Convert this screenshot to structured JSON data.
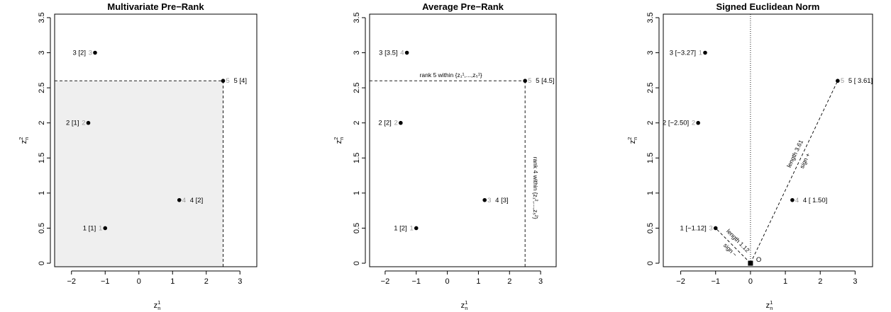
{
  "chart_data": [
    {
      "type": "scatter",
      "title": "Multivariate Pre−Rank",
      "xlabel": "z_n^1",
      "ylabel": "z_n^2",
      "xlim": [
        -2.5,
        3.5
      ],
      "ylim": [
        -0.05,
        3.55
      ],
      "xticks": [
        -2,
        -1,
        0,
        1,
        2,
        3
      ],
      "yticks": [
        0.0,
        0.5,
        1.0,
        1.5,
        2.0,
        2.5,
        3.0,
        3.5
      ],
      "grid": false,
      "points": [
        {
          "x": -1.0,
          "y": 0.5,
          "label": "1  [1]",
          "rank": "1",
          "label_side": "left"
        },
        {
          "x": -1.5,
          "y": 2.0,
          "label": "2  [1]",
          "rank": "2",
          "label_side": "left"
        },
        {
          "x": -1.3,
          "y": 3.0,
          "label": "3  [2]",
          "rank": "3",
          "label_side": "left"
        },
        {
          "x": 1.2,
          "y": 0.9,
          "label": "4  [2]",
          "rank": "4",
          "label_side": "right"
        },
        {
          "x": 2.5,
          "y": 2.6,
          "label": "5  [4]",
          "rank": "5",
          "label_side": "right"
        }
      ],
      "shaded_region": {
        "x_max": 2.5,
        "y_max": 2.6,
        "color": "#efefef"
      },
      "dashed_lines": [
        {
          "from": [
            -2.5,
            2.6
          ],
          "to": [
            2.5,
            2.6
          ]
        },
        {
          "from": [
            2.5,
            -0.05
          ],
          "to": [
            2.5,
            2.6
          ]
        }
      ]
    },
    {
      "type": "scatter",
      "title": "Average Pre−Rank",
      "xlabel": "z_n^1",
      "ylabel": "z_n^2",
      "xlim": [
        -2.5,
        3.5
      ],
      "ylim": [
        -0.05,
        3.55
      ],
      "xticks": [
        -2,
        -1,
        0,
        1,
        2,
        3
      ],
      "yticks": [
        0.0,
        0.5,
        1.0,
        1.5,
        2.0,
        2.5,
        3.0,
        3.5
      ],
      "grid": false,
      "points": [
        {
          "x": -1.0,
          "y": 0.5,
          "label": "1  [2]",
          "rank": "1",
          "label_side": "left"
        },
        {
          "x": -1.5,
          "y": 2.0,
          "label": "2  [2]",
          "rank": "2",
          "label_side": "left"
        },
        {
          "x": -1.3,
          "y": 3.0,
          "label": "3  [3.5]",
          "rank": "4",
          "label_side": "left"
        },
        {
          "x": 1.2,
          "y": 0.9,
          "label": "4  [3]",
          "rank": "3",
          "label_side": "right"
        },
        {
          "x": 2.5,
          "y": 2.6,
          "label": "5  [4.5]",
          "rank": "5",
          "label_side": "right"
        }
      ],
      "dashed_lines": [
        {
          "from": [
            -2.5,
            2.6
          ],
          "to": [
            2.5,
            2.6
          ]
        },
        {
          "from": [
            2.5,
            -0.05
          ],
          "to": [
            2.5,
            2.6
          ]
        }
      ],
      "annotations": {
        "horizontal": "rank 5 within {z₁¹,...,z₅¹}",
        "vertical": "rank 4 within {z₁²,...,z₅²}"
      }
    },
    {
      "type": "scatter",
      "title": "Signed Euclidean Norm",
      "xlabel": "z_n^1",
      "ylabel": "z_n^2",
      "xlim": [
        -2.5,
        3.5
      ],
      "ylim": [
        -0.05,
        3.55
      ],
      "xticks": [
        -2,
        -1,
        0,
        1,
        2,
        3
      ],
      "yticks": [
        0.0,
        0.5,
        1.0,
        1.5,
        2.0,
        2.5,
        3.0,
        3.5
      ],
      "grid": false,
      "points": [
        {
          "x": -1.0,
          "y": 0.5,
          "label": "1  [−1.12]",
          "rank": "3",
          "label_side": "left"
        },
        {
          "x": -1.5,
          "y": 2.0,
          "label": "2  [−2.50]",
          "rank": "2",
          "label_side": "left"
        },
        {
          "x": -1.3,
          "y": 3.0,
          "label": "3  [−3.27]",
          "rank": "1",
          "label_side": "left"
        },
        {
          "x": 1.2,
          "y": 0.9,
          "label": "4  [ 1.50]",
          "rank": "4",
          "label_side": "right"
        },
        {
          "x": 2.5,
          "y": 2.6,
          "label": "5  [ 3.61]",
          "rank": "5",
          "label_side": "right"
        }
      ],
      "origin": {
        "x": 0,
        "y": 0,
        "label": "O"
      },
      "dotted_vertical_x": 0,
      "dashed_lines": [
        {
          "from": [
            0,
            0
          ],
          "to": [
            2.5,
            2.6
          ]
        },
        {
          "from": [
            0,
            0
          ],
          "to": [
            -1.0,
            0.5
          ]
        }
      ],
      "annotations": {
        "length_pos": "length 3.61",
        "sign_pos": "sign +",
        "length_neg": "length 1.12",
        "sign_neg": "sign −"
      }
    }
  ]
}
